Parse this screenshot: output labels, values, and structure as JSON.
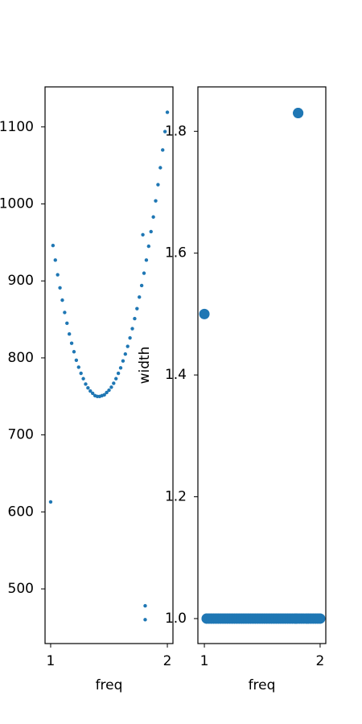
{
  "chart_data": [
    {
      "type": "scatter",
      "x_label": "freq",
      "color": "#1f77b4",
      "x": [
        1.02,
        1.04,
        1.06,
        1.08,
        1.1,
        1.12,
        1.14,
        1.16,
        1.18,
        1.2,
        1.22,
        1.24,
        1.26,
        1.28,
        1.3,
        1.32,
        1.34,
        1.36,
        1.38,
        1.4,
        1.42,
        1.44,
        1.46,
        1.48,
        1.5,
        1.52,
        1.54,
        1.56,
        1.58,
        1.6,
        1.62,
        1.64,
        1.66,
        1.68,
        1.7,
        1.72,
        1.74,
        1.76,
        1.78,
        1.8,
        1.82,
        1.84,
        1.86,
        1.88,
        1.9,
        1.92,
        1.94,
        1.96,
        1.98,
        2.0,
        1.0,
        1.79,
        1.81,
        1.81
      ],
      "values": [
        946,
        927,
        908,
        891,
        875,
        859,
        845,
        831,
        819,
        808,
        797,
        788,
        780,
        773,
        766,
        761,
        757,
        754,
        751,
        750,
        750,
        751,
        752,
        755,
        758,
        762,
        767,
        773,
        780,
        787,
        796,
        805,
        815,
        826,
        838,
        851,
        864,
        879,
        894,
        910,
        927,
        945,
        964,
        983,
        1004,
        1025,
        1047,
        1070,
        1094,
        1119,
        613,
        960,
        478,
        460
      ],
      "xlim": [
        0.952,
        2.048
      ],
      "xticks": [
        1,
        2
      ],
      "ylim": [
        429,
        1152
      ],
      "yticks": [
        500,
        600,
        700,
        800,
        900,
        1000,
        1100
      ]
    },
    {
      "type": "scatter",
      "x_label": "freq",
      "y_label": "width",
      "color": "#1f77b4",
      "x": [
        1.02,
        1.04,
        1.06,
        1.08,
        1.1,
        1.12,
        1.14,
        1.16,
        1.18,
        1.2,
        1.22,
        1.24,
        1.26,
        1.28,
        1.3,
        1.32,
        1.34,
        1.36,
        1.38,
        1.4,
        1.42,
        1.44,
        1.46,
        1.48,
        1.5,
        1.52,
        1.54,
        1.56,
        1.58,
        1.6,
        1.62,
        1.64,
        1.66,
        1.68,
        1.7,
        1.72,
        1.74,
        1.76,
        1.78,
        1.8,
        1.82,
        1.84,
        1.86,
        1.88,
        1.9,
        1.92,
        1.94,
        1.96,
        1.98,
        2.0,
        1.0,
        1.79,
        1.81,
        1.81
      ],
      "values": [
        1,
        1,
        1,
        1,
        1,
        1,
        1,
        1,
        1,
        1,
        1,
        1,
        1,
        1,
        1,
        1,
        1,
        1,
        1,
        1,
        1,
        1,
        1,
        1,
        1,
        1,
        1,
        1,
        1,
        1,
        1,
        1,
        1,
        1,
        1,
        1,
        1,
        1,
        1,
        1,
        1,
        1,
        1,
        1,
        1,
        1,
        1,
        1,
        1,
        1,
        1.5,
        1,
        1.83,
        1.83
      ],
      "xlim": [
        0.944,
        2.049
      ],
      "xticks": [
        1,
        2
      ],
      "ylim": [
        0.959,
        1.873
      ],
      "yticks": [
        {
          "value": 1,
          "label": "1.0"
        },
        {
          "value": 1.2,
          "label": "1.2"
        },
        {
          "value": 1.4,
          "label": "1.4"
        },
        {
          "value": 1.6,
          "label": "1.6"
        },
        {
          "value": 1.8,
          "label": "1.8"
        }
      ]
    }
  ]
}
